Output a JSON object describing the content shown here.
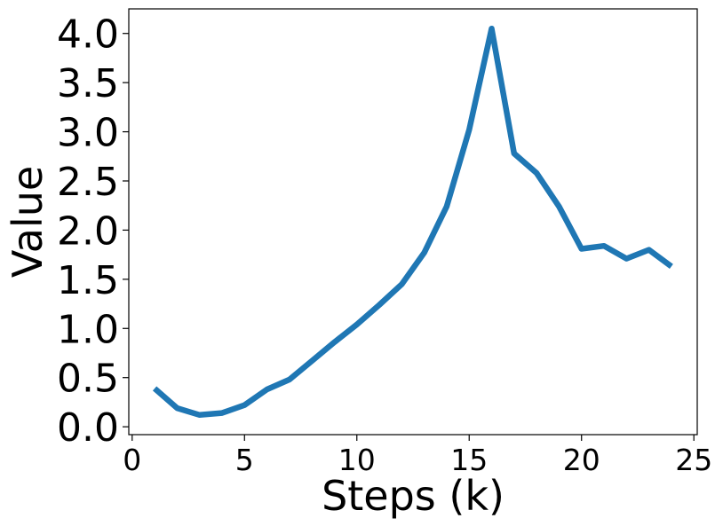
{
  "chart_data": {
    "type": "line",
    "title": "",
    "xlabel": "Steps (k)",
    "ylabel": "Value",
    "xlim": [
      -0.15,
      25.15
    ],
    "ylim": [
      -0.08,
      4.25
    ],
    "xticks": [
      0,
      5,
      10,
      15,
      20,
      25
    ],
    "xtick_labels": [
      "0",
      "5",
      "10",
      "15",
      "20",
      "25"
    ],
    "yticks": [
      0.0,
      0.5,
      1.0,
      1.5,
      2.0,
      2.5,
      3.0,
      3.5,
      4.0
    ],
    "ytick_labels": [
      "0.0",
      "0.5",
      "1.0",
      "1.5",
      "2.0",
      "2.5",
      "3.0",
      "3.5",
      "4.0"
    ],
    "grid": false,
    "series": [
      {
        "color": "#1f77b4",
        "x": [
          1,
          2,
          3,
          4,
          5,
          6,
          7,
          8,
          9,
          10,
          11,
          12,
          13,
          14,
          15,
          16,
          17,
          18,
          19,
          20,
          21,
          22,
          23,
          24
        ],
        "y": [
          0.39,
          0.19,
          0.12,
          0.14,
          0.22,
          0.38,
          0.48,
          0.67,
          0.86,
          1.04,
          1.24,
          1.45,
          1.77,
          2.24,
          3.02,
          4.05,
          2.78,
          2.58,
          2.24,
          1.81,
          1.84,
          1.71,
          1.8,
          1.63
        ]
      }
    ]
  }
}
